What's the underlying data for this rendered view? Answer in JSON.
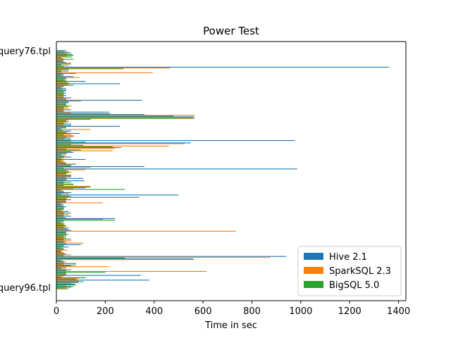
{
  "chart_data": {
    "type": "bar",
    "orientation": "horizontal",
    "title": "Power Test",
    "xlabel": "Time in sec",
    "ylabel": "",
    "xlim": [
      0,
      1430
    ],
    "xticks": [
      0,
      200,
      400,
      600,
      800,
      1000,
      1200,
      1400
    ],
    "grid": false,
    "legend_position": "lower-right",
    "categories_first": "query76.tpl",
    "categories_last": "query96.tpl",
    "series": [
      {
        "name": "Hive 2.1",
        "color": "#1f77b4",
        "values": [
          40,
          60,
          70,
          20,
          30,
          40,
          20,
          1360,
          50,
          20,
          30,
          70,
          40,
          120,
          260,
          30,
          40,
          40,
          40,
          40,
          60,
          350,
          50,
          40,
          30,
          60,
          215,
          360,
          565,
          140,
          50,
          60,
          260,
          20,
          60,
          95,
          70,
          60,
          975,
          550,
          110,
          265,
          100,
          70,
          20,
          60,
          120,
          30,
          80,
          360,
          985,
          50,
          40,
          60,
          110,
          115,
          30,
          30,
          120,
          20,
          60,
          500,
          340,
          60,
          40,
          30,
          40,
          30,
          50,
          30,
          60,
          240,
          30,
          30,
          40,
          50,
          60,
          40,
          40,
          30,
          30,
          30,
          100,
          50,
          30,
          20,
          40,
          940,
          560,
          30,
          80,
          60,
          20,
          40,
          40,
          345,
          120,
          380,
          90,
          80,
          60
        ]
      },
      {
        "name": "SparkSQL 2.3",
        "color": "#ff7f0e",
        "values": [
          30,
          40,
          45,
          30,
          25,
          60,
          50,
          465,
          20,
          395,
          20,
          95,
          30,
          40,
          50,
          30,
          25,
          30,
          30,
          30,
          40,
          100,
          40,
          60,
          50,
          30,
          60,
          565,
          560,
          50,
          40,
          30,
          40,
          140,
          50,
          60,
          70,
          30,
          60,
          525,
          460,
          240,
          230,
          45,
          40,
          30,
          30,
          40,
          60,
          140,
          120,
          60,
          40,
          60,
          45,
          30,
          70,
          140,
          70,
          30,
          50,
          50,
          45,
          40,
          190,
          20,
          30,
          30,
          30,
          50,
          30,
          190,
          30,
          35,
          40,
          40,
          735,
          40,
          30,
          40,
          60,
          110,
          30,
          20,
          45,
          30,
          60,
          875,
          565,
          40,
          30,
          215,
          40,
          615,
          40,
          30,
          90,
          90,
          60,
          40,
          40
        ]
      },
      {
        "name": "BigSQL 5.0",
        "color": "#2ca02c",
        "values": [
          50,
          65,
          65,
          70,
          30,
          60,
          30,
          275,
          50,
          80,
          30,
          40,
          40,
          50,
          70,
          20,
          40,
          30,
          30,
          30,
          40,
          50,
          40,
          50,
          30,
          30,
          220,
          480,
          565,
          40,
          30,
          60,
          40,
          25,
          40,
          30,
          40,
          60,
          120,
          60,
          230,
          40,
          60,
          40,
          30,
          20,
          20,
          40,
          60,
          30,
          40,
          50,
          60,
          40,
          40,
          60,
          70,
          140,
          280,
          30,
          20,
          60,
          40,
          40,
          20,
          30,
          30,
          20,
          60,
          30,
          40,
          240,
          20,
          30,
          30,
          50,
          40,
          50,
          40,
          60,
          40,
          40,
          30,
          30,
          20,
          30,
          30,
          280,
          20,
          30,
          80,
          40,
          60,
          200,
          40,
          20,
          80,
          110,
          75,
          70,
          50
        ]
      }
    ]
  }
}
